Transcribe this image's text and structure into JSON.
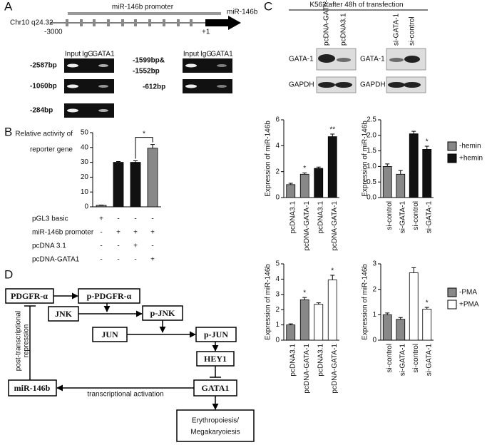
{
  "panel_labels": [
    "A",
    "B",
    "C",
    "D"
  ],
  "panel_a": {
    "promoter_label": "miR-146b promoter",
    "gene_label": "miR-146b",
    "locus": "Chr10 q24.32",
    "start": "-3000",
    "end": "+1",
    "lane_headers": [
      [
        "Input",
        "IgG",
        "GATA1"
      ],
      [
        "Input",
        "IgG",
        "GATA1"
      ]
    ],
    "left_rows": [
      "-2587bp",
      "-1060bp",
      "-284bp"
    ],
    "right_rows": [
      [
        "-1599bp&",
        "-1552bp"
      ],
      [
        "-612bp"
      ]
    ]
  },
  "panel_c_blots": {
    "title": "K562 after 48h of transfection",
    "lanes": [
      [
        "pcDNA-GATA-1",
        "pcDNA3.1"
      ],
      [
        "si-GATA-1",
        "si-control"
      ]
    ],
    "rows": [
      [
        "GATA-1",
        "GAPDH"
      ],
      [
        "GATA-1",
        "GAPDH"
      ]
    ]
  },
  "chart_data": [
    {
      "type": "bar",
      "y_label": [
        "Relative activity of",
        "reporter gene"
      ],
      "categories": [
        null,
        null,
        null,
        null
      ],
      "values": [
        1,
        30,
        30,
        39.5
      ],
      "errors": [
        0.2,
        0.5,
        1,
        2.5
      ],
      "colors": [
        "#888888",
        "#111111",
        "#111111",
        "#888888"
      ],
      "ylim": [
        0,
        50
      ],
      "yticks": [
        0,
        10,
        20,
        30,
        40,
        50
      ],
      "bar_annotations": [
        null,
        null,
        null,
        "*"
      ],
      "condition_table": [
        {
          "label": "pGL3 basic",
          "signs": [
            "+",
            "-",
            "-",
            "-"
          ]
        },
        {
          "label": "miR-146b promoter",
          "signs": [
            "-",
            "+",
            "+",
            "+"
          ]
        },
        {
          "label": "pcDNA 3.1",
          "signs": [
            "-",
            "-",
            "+",
            "-"
          ]
        },
        {
          "label": "pcDNA-GATA1",
          "signs": [
            "-",
            "-",
            "-",
            "+"
          ]
        }
      ]
    },
    {
      "type": "bar",
      "y_label": "Expression of miR-146b",
      "categories": [
        "pcDNA3.1",
        "pcDNA-GATA-1",
        "pcDNA3.1",
        "pcDNA-GATA-1"
      ],
      "series": [
        {
          "name": "-hemin",
          "color": "#888888",
          "values": [
            1,
            1.8,
            null,
            null
          ],
          "errors": [
            0.1,
            0.1,
            null,
            null
          ]
        },
        {
          "name": "+hemin",
          "color": "#111111",
          "values": [
            null,
            null,
            2.25,
            4.7
          ],
          "errors": [
            null,
            null,
            0.1,
            0.2
          ]
        }
      ],
      "ylim": [
        0,
        6
      ],
      "yticks": [
        0,
        2,
        4,
        6
      ],
      "bar_annotations": [
        null,
        "*",
        null,
        "**"
      ]
    },
    {
      "type": "bar",
      "y_label": "Expression of miR-146b",
      "categories": [
        "si-control",
        "si-GATA-1",
        "si-control",
        "si-GATA-1"
      ],
      "series": [
        {
          "name": "-hemin",
          "color": "#888888",
          "values": [
            1,
            0.75,
            null,
            null
          ],
          "errors": [
            0.08,
            0.12,
            null,
            null
          ]
        },
        {
          "name": "+hemin",
          "color": "#111111",
          "values": [
            null,
            null,
            2.05,
            1.55
          ],
          "errors": [
            null,
            null,
            0.08,
            0.1
          ]
        }
      ],
      "ylim": [
        0,
        2.5
      ],
      "yticks": [
        {
          "value": 0,
          "label": "0.0"
        },
        0.5,
        {
          "value": 1,
          "label": "1.0"
        },
        1.5,
        {
          "value": 2,
          "label": "2.0"
        },
        2.5
      ],
      "bar_annotations": [
        null,
        null,
        null,
        "*"
      ],
      "legend": "right"
    },
    {
      "type": "bar",
      "y_label": "Expression of miR-146b",
      "categories": [
        "pcDNA3.1",
        "pcDNA-GATA-1",
        "pcDNA3.1",
        "pcDNA-GATA-1"
      ],
      "series": [
        {
          "name": "-PMA",
          "color": "#888888",
          "values": [
            1,
            2.65,
            null,
            null
          ],
          "errors": [
            0.07,
            0.15,
            null,
            null
          ]
        },
        {
          "name": "+PMA",
          "color": "#ffffff",
          "values": [
            null,
            null,
            2.35,
            3.95
          ],
          "errors": [
            null,
            null,
            0.1,
            0.3
          ]
        }
      ],
      "ylim": [
        0,
        5
      ],
      "yticks": [
        0,
        1,
        2,
        3,
        4,
        5
      ],
      "bar_annotations": [
        null,
        "*",
        null,
        "*"
      ]
    },
    {
      "type": "bar",
      "y_label": "Expression of miR-146b",
      "categories": [
        "si-control",
        "si-GATA-1",
        "si-control",
        "si-GATA-1"
      ],
      "series": [
        {
          "name": "-PMA",
          "color": "#888888",
          "values": [
            1,
            0.82,
            null,
            null
          ],
          "errors": [
            0.07,
            0.07,
            null,
            null
          ]
        },
        {
          "name": "+PMA",
          "color": "#ffffff",
          "values": [
            null,
            null,
            2.65,
            1.22
          ],
          "errors": [
            null,
            null,
            0.2,
            0.07
          ]
        }
      ],
      "ylim": [
        0,
        3
      ],
      "yticks": [
        0,
        1,
        2,
        3
      ],
      "bar_annotations": [
        null,
        null,
        null,
        "*"
      ],
      "legend": "right"
    }
  ],
  "panel_d": {
    "nodes": [
      "PDGFR-α",
      "p-PDGFR-α",
      "JNK",
      "p-JNK",
      "JUN",
      "p-JUN",
      "HEY1",
      "GATA1",
      "miR-146b"
    ],
    "outcome": [
      "Erythropoiesis/",
      "Megakaryoiesis"
    ],
    "repression_label": [
      "post-transcriptional",
      "repression"
    ],
    "activation_label": "transcriptional activation"
  }
}
